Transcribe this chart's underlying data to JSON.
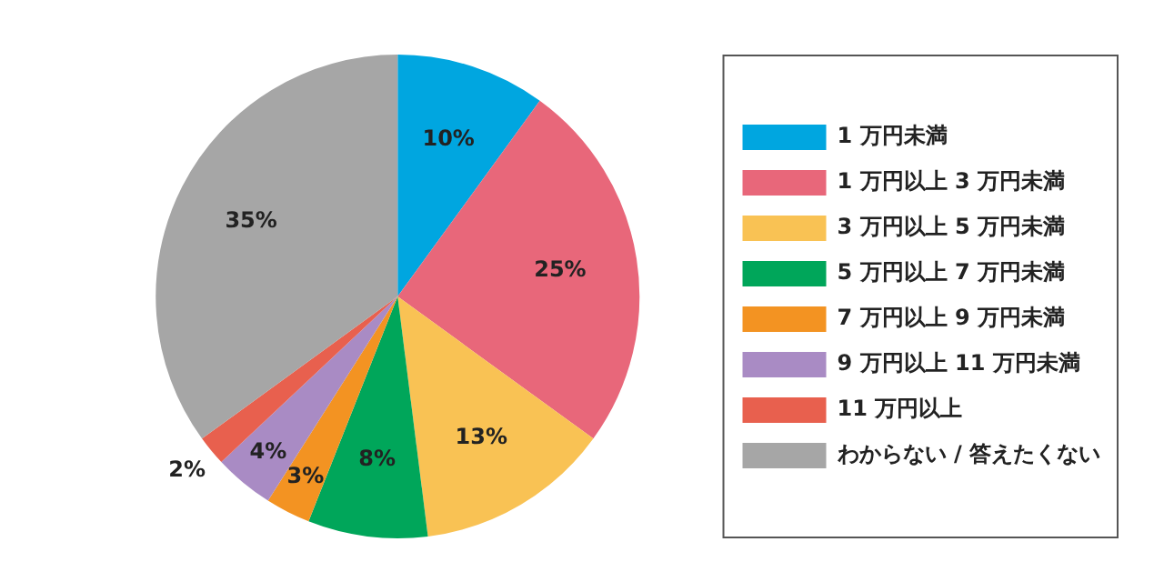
{
  "chart_data": {
    "type": "pie",
    "categories": [
      "1 万円未満",
      "1 万円以上 3 万円未満",
      "3 万円以上 5 万円未満",
      "5 万円以上 7 万円未満",
      "7 万円以上 9 万円未満",
      "9 万円以上 11 万円未満",
      "11 万円以上",
      "わからない / 答えたくない"
    ],
    "values": [
      10,
      25,
      13,
      8,
      3,
      4,
      2,
      35
    ],
    "colors": [
      "#00a6e0",
      "#e8677a",
      "#f9c254",
      "#00a65a",
      "#f39322",
      "#a98bc4",
      "#e8604e",
      "#a6a6a6"
    ],
    "value_labels": [
      "10%",
      "25%",
      "13%",
      "8%",
      "3%",
      "4%",
      "2%",
      "35%"
    ],
    "legend": "right"
  }
}
